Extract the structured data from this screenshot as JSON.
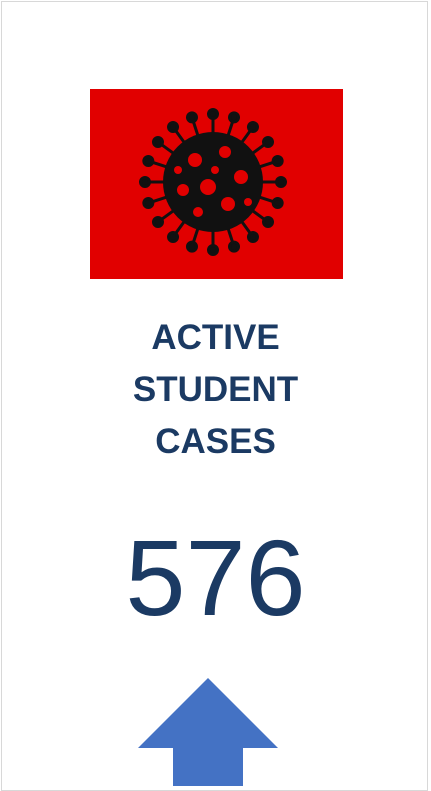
{
  "title_lines": [
    "ACTIVE",
    "STUDENT",
    "CASES"
  ],
  "count": "576"
}
